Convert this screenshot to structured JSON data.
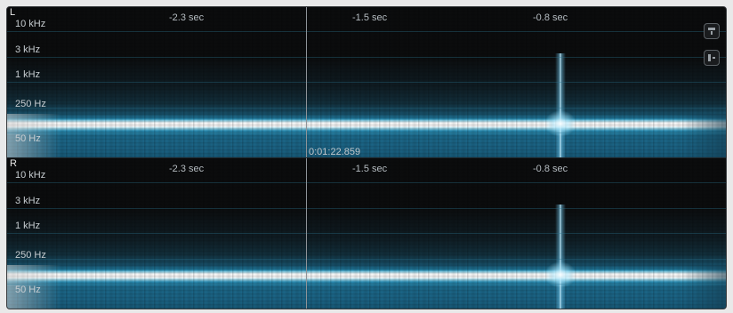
{
  "channels": [
    {
      "letter": "L",
      "freq_labels": [
        "10 kHz",
        "3 kHz",
        "1 kHz",
        "250 Hz",
        "50 Hz"
      ],
      "time_labels": [
        "-2.3 sec",
        "-1.5 sec",
        "-0.8 sec"
      ],
      "cursor_time": "0:01:22.859"
    },
    {
      "letter": "R",
      "freq_labels": [
        "10 kHz",
        "3 kHz",
        "1 kHz",
        "250 Hz",
        "50 Hz"
      ],
      "time_labels": [
        "-2.3 sec",
        "-1.5 sec",
        "-0.8 sec"
      ]
    }
  ],
  "toolbar": {
    "buttons": [
      "freeze-icon",
      "split-view-icon"
    ]
  },
  "colors": {
    "background": "#0b0c0d",
    "spectrum": "#2c92b8",
    "peak": "#ffffff",
    "gridline": "#2d7896"
  }
}
